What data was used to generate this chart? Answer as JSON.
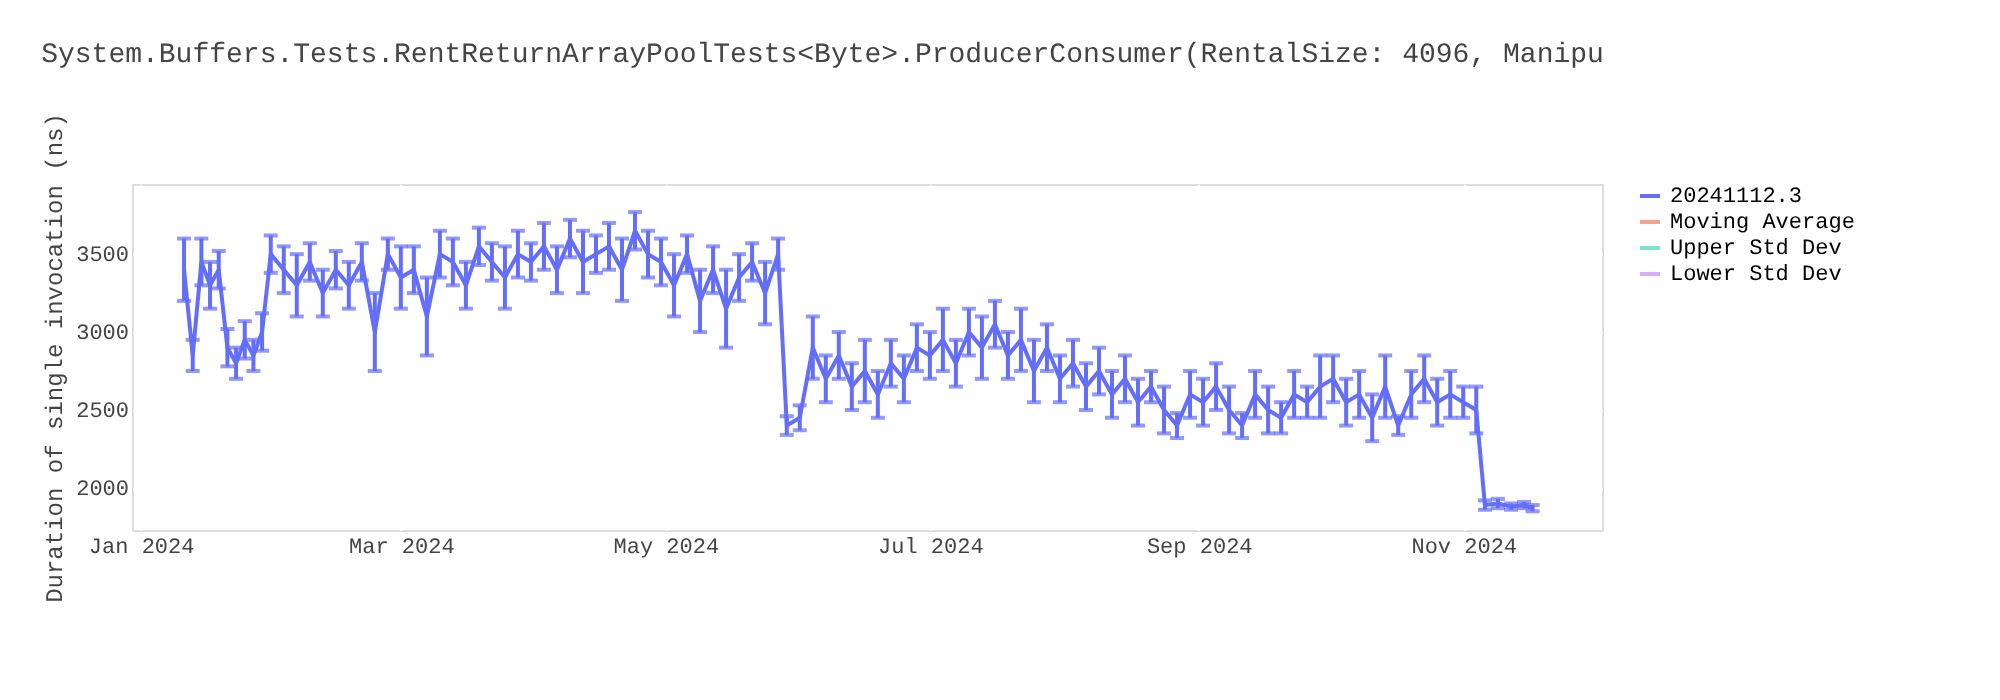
{
  "chart_data": {
    "type": "line",
    "title": "System.Buffers.Tests.RentReturnArrayPoolTests<Byte>.ProducerConsumer(RentalSize: 4096, Manipu",
    "ylabel": "Duration of single invocation (ns)",
    "x": [
      "2024-01-11",
      "2024-01-13",
      "2024-01-15",
      "2024-01-17",
      "2024-01-19",
      "2024-01-21",
      "2024-01-23",
      "2024-01-25",
      "2024-01-27",
      "2024-01-29",
      "2024-01-31",
      "2024-02-03",
      "2024-02-06",
      "2024-02-09",
      "2024-02-12",
      "2024-02-15",
      "2024-02-18",
      "2024-02-21",
      "2024-02-24",
      "2024-02-27",
      "2024-03-01",
      "2024-03-04",
      "2024-03-07",
      "2024-03-10",
      "2024-03-13",
      "2024-03-16",
      "2024-03-19",
      "2024-03-22",
      "2024-03-25",
      "2024-03-28",
      "2024-03-31",
      "2024-04-03",
      "2024-04-06",
      "2024-04-09",
      "2024-04-12",
      "2024-04-15",
      "2024-04-18",
      "2024-04-21",
      "2024-04-24",
      "2024-04-27",
      "2024-04-30",
      "2024-05-03",
      "2024-05-06",
      "2024-05-09",
      "2024-05-12",
      "2024-05-15",
      "2024-05-18",
      "2024-05-21",
      "2024-05-24",
      "2024-05-27",
      "2024-05-29",
      "2024-06-01",
      "2024-06-04",
      "2024-06-07",
      "2024-06-10",
      "2024-06-13",
      "2024-06-16",
      "2024-06-19",
      "2024-06-22",
      "2024-06-25",
      "2024-06-28",
      "2024-07-01",
      "2024-07-04",
      "2024-07-07",
      "2024-07-10",
      "2024-07-13",
      "2024-07-16",
      "2024-07-19",
      "2024-07-22",
      "2024-07-25",
      "2024-07-28",
      "2024-07-31",
      "2024-08-03",
      "2024-08-06",
      "2024-08-09",
      "2024-08-12",
      "2024-08-15",
      "2024-08-18",
      "2024-08-21",
      "2024-08-24",
      "2024-08-27",
      "2024-08-30",
      "2024-09-02",
      "2024-09-05",
      "2024-09-08",
      "2024-09-11",
      "2024-09-14",
      "2024-09-17",
      "2024-09-20",
      "2024-09-23",
      "2024-09-26",
      "2024-09-29",
      "2024-10-02",
      "2024-10-05",
      "2024-10-08",
      "2024-10-11",
      "2024-10-14",
      "2024-10-17",
      "2024-10-20",
      "2024-10-23",
      "2024-10-26",
      "2024-10-29",
      "2024-11-01",
      "2024-11-04",
      "2024-11-06",
      "2024-11-09",
      "2024-11-12",
      "2024-11-15",
      "2024-11-17"
    ],
    "series": [
      {
        "name": "20241112.3",
        "color": "#636efa",
        "values": [
          3400,
          2850,
          3450,
          3300,
          3400,
          2900,
          2800,
          2950,
          2850,
          3000,
          3500,
          3400,
          3300,
          3450,
          3250,
          3400,
          3300,
          3450,
          3000,
          3500,
          3350,
          3400,
          3100,
          3500,
          3450,
          3300,
          3550,
          3450,
          3350,
          3500,
          3450,
          3550,
          3400,
          3600,
          3450,
          3500,
          3550,
          3400,
          3650,
          3500,
          3450,
          3300,
          3500,
          3200,
          3400,
          3150,
          3350,
          3450,
          3250,
          3500,
          2400,
          2450,
          2900,
          2700,
          2850,
          2650,
          2750,
          2600,
          2800,
          2700,
          2900,
          2850,
          2950,
          2800,
          3000,
          2900,
          3050,
          2850,
          2950,
          2750,
          2900,
          2700,
          2800,
          2650,
          2750,
          2600,
          2700,
          2550,
          2650,
          2500,
          2400,
          2600,
          2550,
          2650,
          2500,
          2400,
          2600,
          2500,
          2450,
          2600,
          2550,
          2650,
          2700,
          2550,
          2600,
          2450,
          2650,
          2400,
          2600,
          2700,
          2550,
          2600,
          2550,
          2500,
          1890,
          1900,
          1880,
          1890,
          1870
        ],
        "errors": [
          200,
          100,
          150,
          150,
          120,
          120,
          100,
          120,
          100,
          120,
          120,
          150,
          200,
          120,
          150,
          120,
          150,
          120,
          250,
          100,
          200,
          150,
          250,
          150,
          150,
          150,
          120,
          120,
          200,
          150,
          120,
          150,
          150,
          120,
          200,
          120,
          150,
          200,
          120,
          150,
          150,
          200,
          120,
          200,
          150,
          250,
          150,
          120,
          200,
          100,
          60,
          80,
          200,
          150,
          150,
          150,
          200,
          150,
          150,
          150,
          150,
          150,
          200,
          150,
          150,
          200,
          150,
          150,
          200,
          200,
          150,
          150,
          150,
          150,
          150,
          150,
          150,
          150,
          100,
          150,
          80,
          150,
          150,
          150,
          150,
          80,
          150,
          150,
          100,
          150,
          100,
          200,
          150,
          150,
          150,
          150,
          200,
          60,
          150,
          150,
          150,
          150,
          100,
          150,
          30,
          30,
          20,
          20,
          20
        ]
      },
      {
        "name": "Moving Average",
        "color": "#f5a38f",
        "values": [
          null,
          null,
          null,
          null,
          null,
          null,
          null,
          null,
          null,
          null,
          null,
          null,
          null,
          null,
          null,
          null,
          null,
          null,
          null,
          null,
          null,
          null,
          null,
          null,
          null,
          null,
          null,
          null,
          null,
          null,
          null,
          null,
          null,
          null,
          null,
          null,
          null,
          null,
          null,
          null,
          null,
          null,
          null,
          null,
          null,
          null,
          null,
          null,
          null,
          null,
          null,
          null,
          null,
          null,
          null,
          null,
          null,
          null,
          null,
          null,
          null,
          null,
          null,
          null,
          null,
          null,
          null,
          null,
          null,
          null,
          null,
          null,
          null,
          null,
          null,
          null,
          null,
          null,
          null,
          null,
          null,
          null,
          null,
          null,
          null,
          null,
          null,
          null,
          null,
          null,
          null,
          null,
          null,
          null,
          null,
          null,
          null,
          null,
          null,
          null,
          null,
          null,
          null,
          null,
          null,
          null,
          null,
          null,
          null
        ]
      },
      {
        "name": "Upper Std Dev",
        "color": "#7fe5ca",
        "values": [
          null,
          null,
          null,
          null,
          null,
          null,
          null,
          null,
          null,
          null,
          null,
          null,
          null,
          null,
          null,
          null,
          null,
          null,
          null,
          null,
          null,
          null,
          null,
          null,
          null,
          null,
          null,
          null,
          null,
          null,
          null,
          null,
          null,
          null,
          null,
          null,
          null,
          null,
          null,
          null,
          null,
          null,
          null,
          null,
          null,
          null,
          null,
          null,
          null,
          null,
          null,
          null,
          null,
          null,
          null,
          null,
          null,
          null,
          null,
          null,
          null,
          null,
          null,
          null,
          null,
          null,
          null,
          null,
          null,
          null,
          null,
          null,
          null,
          null,
          null,
          null,
          null,
          null,
          null,
          null,
          null,
          null,
          null,
          null,
          null,
          null,
          null,
          null,
          null,
          null,
          null,
          null,
          null,
          null,
          null,
          null,
          null,
          null,
          null,
          null,
          null,
          null,
          null,
          null,
          null,
          null,
          null,
          null,
          null
        ]
      },
      {
        "name": "Lower Std Dev",
        "color": "#d5b1fc",
        "values": [
          null,
          null,
          null,
          null,
          null,
          null,
          null,
          null,
          null,
          null,
          null,
          null,
          null,
          null,
          null,
          null,
          null,
          null,
          null,
          null,
          null,
          null,
          null,
          null,
          null,
          null,
          null,
          null,
          null,
          null,
          null,
          null,
          null,
          null,
          null,
          null,
          null,
          null,
          null,
          null,
          null,
          null,
          null,
          null,
          null,
          null,
          null,
          null,
          null,
          null,
          null,
          null,
          null,
          null,
          null,
          null,
          null,
          null,
          null,
          null,
          null,
          null,
          null,
          null,
          null,
          null,
          null,
          null,
          null,
          null,
          null,
          null,
          null,
          null,
          null,
          null,
          null,
          null,
          null,
          null,
          null,
          null,
          null,
          null,
          null,
          null,
          null,
          null,
          null,
          null,
          null,
          null,
          null,
          null,
          null,
          null,
          null,
          null,
          null,
          null,
          null,
          null,
          null,
          null,
          null,
          null,
          null,
          null,
          null
        ]
      }
    ],
    "xlim": [
      "2023-12-30",
      "2024-12-03"
    ],
    "xticks": [
      {
        "value": "2024-01-01",
        "label": "Jan 2024"
      },
      {
        "value": "2024-03-01",
        "label": "Mar 2024"
      },
      {
        "value": "2024-05-01",
        "label": "May 2024"
      },
      {
        "value": "2024-07-01",
        "label": "Jul 2024"
      },
      {
        "value": "2024-09-01",
        "label": "Sep 2024"
      },
      {
        "value": "2024-11-01",
        "label": "Nov 2024"
      }
    ],
    "ylim": [
      1730,
      3950
    ],
    "yticks": [
      2000,
      2500,
      3000,
      3500
    ],
    "grid": true,
    "legend": "right",
    "marker": "none",
    "line_style": "solid"
  }
}
